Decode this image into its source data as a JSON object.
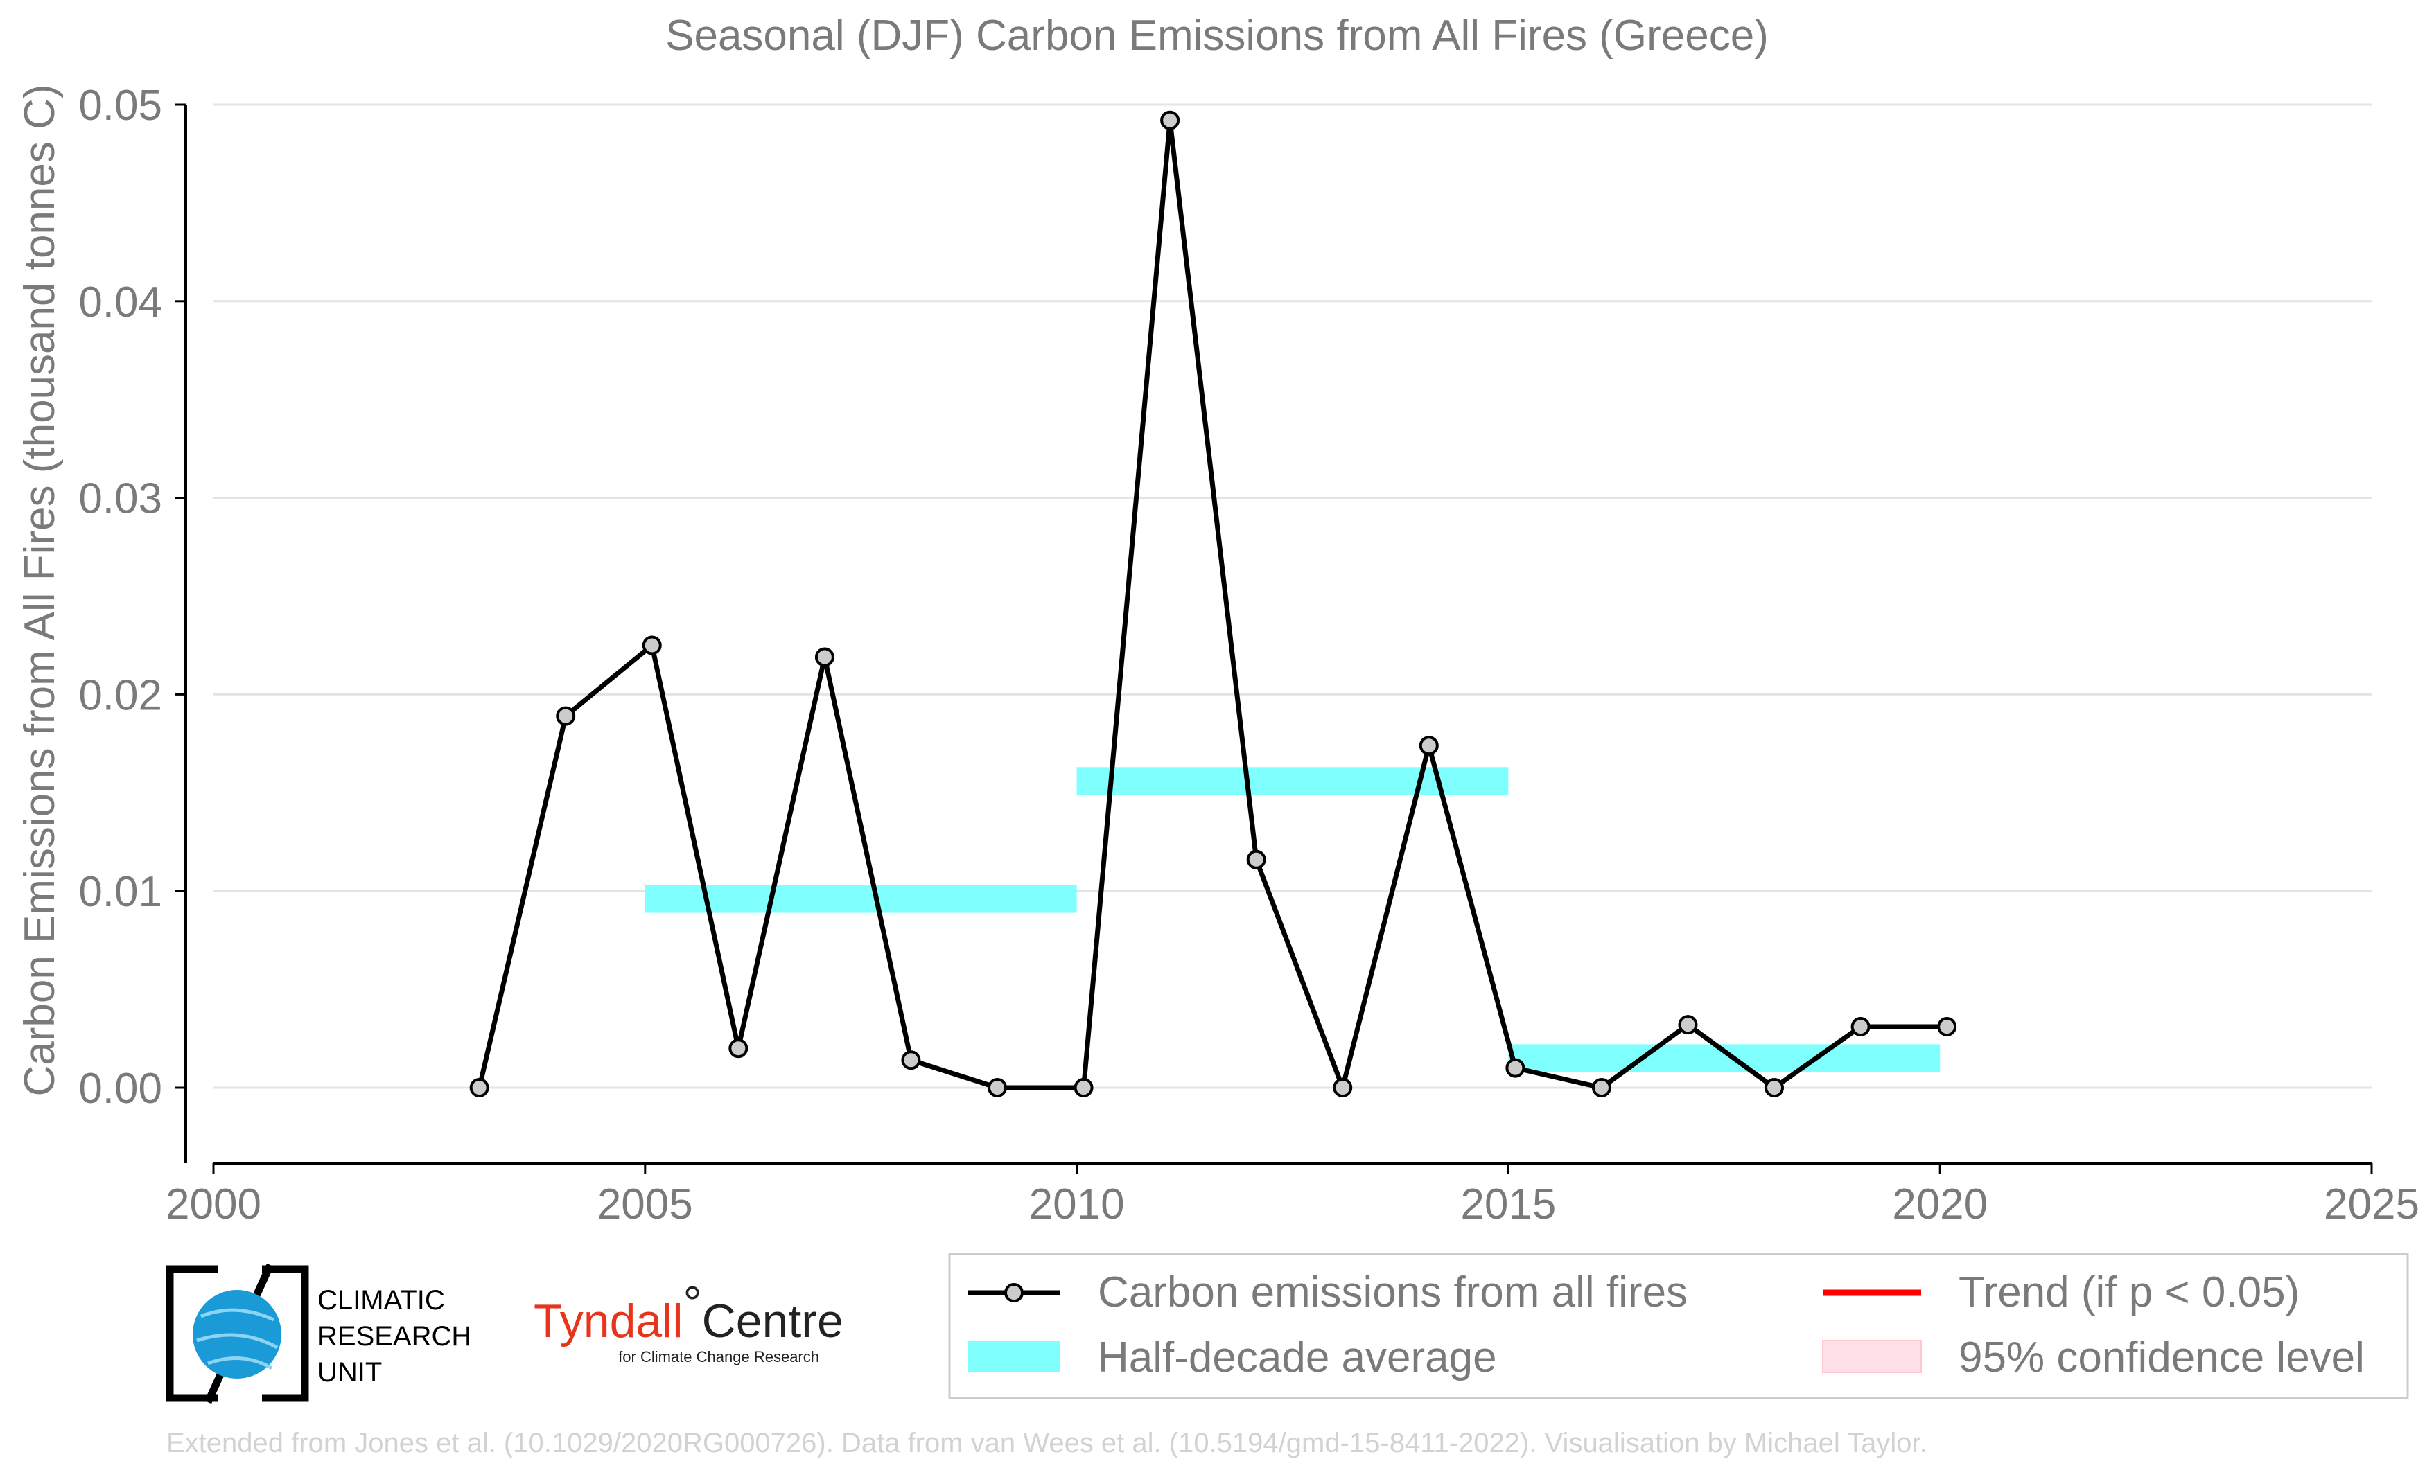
{
  "chart_data": {
    "type": "line",
    "title": "Seasonal (DJF) Carbon Emissions from All Fires (Greece)",
    "xlabel": "",
    "ylabel": "Carbon Emissions from All Fires (thousand tonnes C)",
    "xlim": [
      2000,
      2025
    ],
    "ylim": [
      0,
      0.05
    ],
    "x_ticks": [
      "2000",
      "2005",
      "2010",
      "2015",
      "2020",
      "2025"
    ],
    "y_ticks": [
      "0.00",
      "0.01",
      "0.02",
      "0.03",
      "0.04",
      "0.05"
    ],
    "grid": "horizontal",
    "series": [
      {
        "name": "Carbon emissions from all fires",
        "color": "#000000",
        "marker_color": "#cccccc",
        "x": [
          2003.08,
          2004.08,
          2005.08,
          2006.08,
          2007.08,
          2008.08,
          2009.08,
          2010.08,
          2011.08,
          2012.08,
          2013.08,
          2014.08,
          2015.08,
          2016.08,
          2017.08,
          2018.08,
          2019.08,
          2020.08
        ],
        "y": [
          0.0,
          0.0189,
          0.0225,
          0.002,
          0.0219,
          0.0014,
          0.0,
          0.0,
          0.0492,
          0.0116,
          0.0,
          0.0174,
          0.001,
          0.0,
          0.0032,
          0.0,
          0.0031,
          0.0031
        ]
      }
    ],
    "half_decade_average": {
      "name": "Half-decade average",
      "color": "#80ffff",
      "segments": [
        {
          "x0": 2005,
          "x1": 2010,
          "y": 0.0096
        },
        {
          "x0": 2010,
          "x1": 2015,
          "y": 0.0156
        },
        {
          "x0": 2015,
          "x1": 2020,
          "y": 0.0015
        }
      ]
    },
    "legend": {
      "placement": "bottom-right",
      "entries": [
        {
          "label": "Carbon emissions from all fires",
          "symbol": "line-marker",
          "color": "#000000"
        },
        {
          "label": "Trend (if p < 0.05)",
          "symbol": "line",
          "color": "#ff0000"
        },
        {
          "label": "Half-decade average",
          "symbol": "patch",
          "color": "#80ffff"
        },
        {
          "label": "95% confidence level",
          "symbol": "patch",
          "color": "#ffe0e6"
        }
      ]
    }
  },
  "logos": {
    "cru_lines": [
      "CLIMATIC",
      "RESEARCH",
      "UNIT"
    ],
    "tyndall_name": "Tyndall",
    "tyndall_degree": "°",
    "tyndall_centre": "Centre",
    "tyndall_sub": "for Climate Change Research"
  },
  "footer": "Extended from Jones et al. (10.1029/2020RG000726). Data from van Wees et al. (10.5194/gmd-15-8411-2022). Visualisation by Michael Taylor."
}
